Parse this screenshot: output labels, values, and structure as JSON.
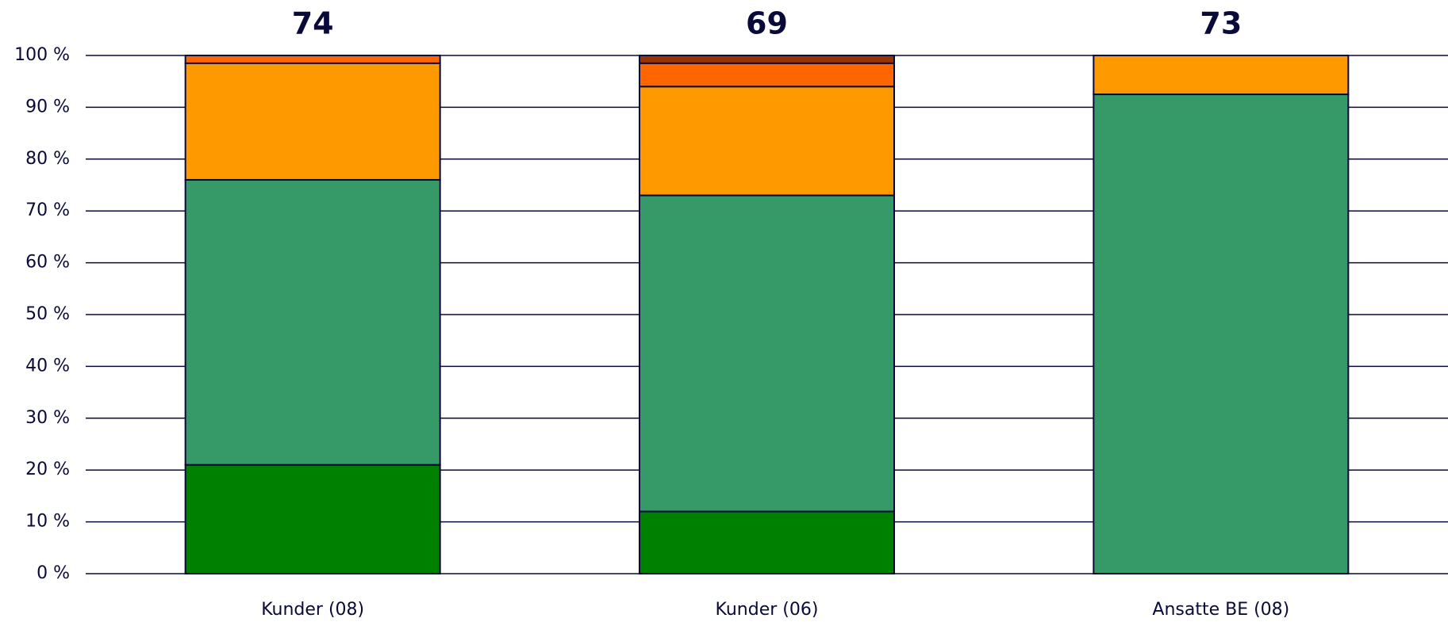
{
  "chart_data": {
    "type": "stacked_bar",
    "categories": [
      "Kunder (08)",
      "Kunder (06)",
      "Ansatte BE (08)"
    ],
    "annotations": [
      74,
      69,
      73
    ],
    "series": [
      {
        "color": "#008000",
        "values": [
          21,
          12,
          0
        ]
      },
      {
        "color": "#359a68",
        "values": [
          55,
          61,
          92.5
        ]
      },
      {
        "color": "#ff9900",
        "values": [
          22.5,
          21,
          7.5
        ]
      },
      {
        "color": "#ff6600",
        "values": [
          1.5,
          4.5,
          0
        ]
      },
      {
        "color": "#993300",
        "values": [
          0,
          1.5,
          0
        ]
      }
    ],
    "ylim": [
      0,
      100
    ],
    "yticks": [
      {
        "value": 0,
        "label": "0 %"
      },
      {
        "value": 10,
        "label": "10 %"
      },
      {
        "value": 20,
        "label": "20 %"
      },
      {
        "value": 30,
        "label": "30 %"
      },
      {
        "value": 40,
        "label": "40 %"
      },
      {
        "value": 50,
        "label": "50 %"
      },
      {
        "value": 60,
        "label": "60 %"
      },
      {
        "value": 70,
        "label": "70 %"
      },
      {
        "value": 80,
        "label": "80 %"
      },
      {
        "value": 90,
        "label": "90 %"
      },
      {
        "value": 100,
        "label": "100 %"
      }
    ],
    "grid": true
  }
}
